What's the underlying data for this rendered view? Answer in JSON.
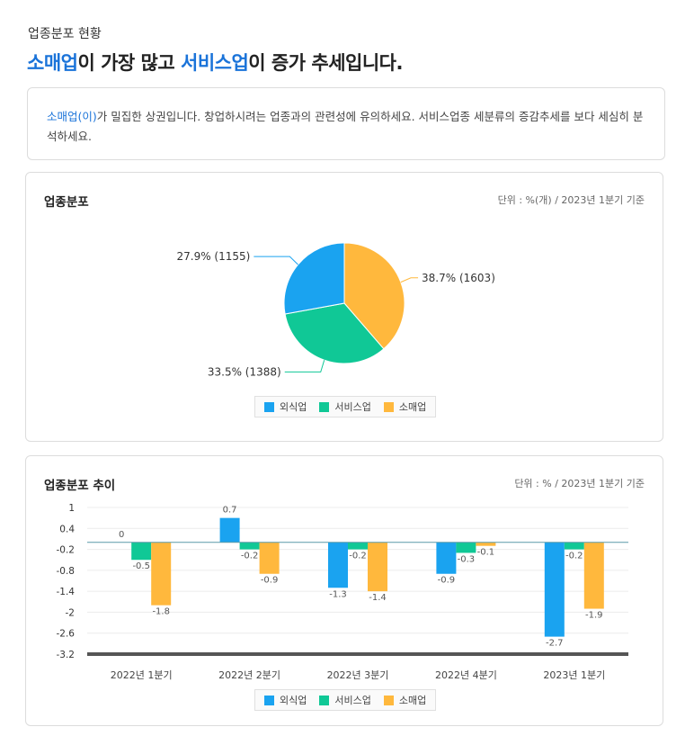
{
  "header": {
    "section_label": "업종분포 현황",
    "headline_highlight1": "소매업",
    "headline_mid": "이 가장 많고 ",
    "headline_highlight2": "서비스업",
    "headline_end": "이 증가 추세입니다."
  },
  "notice": {
    "highlight": "소매업(이)",
    "text": "가 밀집한 상권입니다. 창업하시려는 업종과의 관련성에 유의하세요. 서비스업종 세분류의 증감추세를 보다 세심히 분석하세요."
  },
  "colors": {
    "food": "#1aa3f0",
    "service": "#10c896",
    "retail": "#ffb83d",
    "accent": "#1a73d9"
  },
  "distribution_card": {
    "title": "업종분포",
    "unit": "단위 : %(개) / 2023년 1분기 기준"
  },
  "trend_card": {
    "title": "업종분포 추이",
    "unit": "단위 : % / 2023년 1분기 기준"
  },
  "legend": [
    "외식업",
    "서비스업",
    "소매업"
  ],
  "chart_data": [
    {
      "type": "pie",
      "title": "업종분포",
      "slices": [
        {
          "name": "소매업",
          "percent": 38.7,
          "count": 1603,
          "label": "38.7% (1603)"
        },
        {
          "name": "서비스업",
          "percent": 33.5,
          "count": 1388,
          "label": "33.5% (1388)"
        },
        {
          "name": "외식업",
          "percent": 27.9,
          "count": 1155,
          "label": "27.9% (1155)"
        }
      ]
    },
    {
      "type": "bar",
      "title": "업종분포 추이",
      "categories": [
        "2022년 1분기",
        "2022년 2분기",
        "2022년 3분기",
        "2022년 4분기",
        "2023년 1분기"
      ],
      "series": [
        {
          "name": "외식업",
          "values": [
            0,
            0.7,
            -1.3,
            -0.9,
            -2.7
          ],
          "labels": [
            "0",
            "0.7",
            "-1.3",
            "-0.9",
            "-2.7"
          ]
        },
        {
          "name": "서비스업",
          "values": [
            -0.5,
            -0.2,
            -0.2,
            -0.3,
            -0.2
          ],
          "labels": [
            "-0.5",
            "-0.2",
            "-0.2",
            "-0.3",
            "-0.2"
          ]
        },
        {
          "name": "소매업",
          "values": [
            -1.8,
            -0.9,
            -1.4,
            -0.1,
            -1.9
          ],
          "labels": [
            "-1.8",
            "-0.9",
            "-1.4",
            "-0.1",
            "-1.9"
          ]
        }
      ],
      "yticks": [
        "1",
        "0.4",
        "-0.2",
        "-0.8",
        "-1.4",
        "-2",
        "-2.6",
        "-3.2"
      ],
      "ylim": [
        -3.2,
        1
      ]
    }
  ]
}
